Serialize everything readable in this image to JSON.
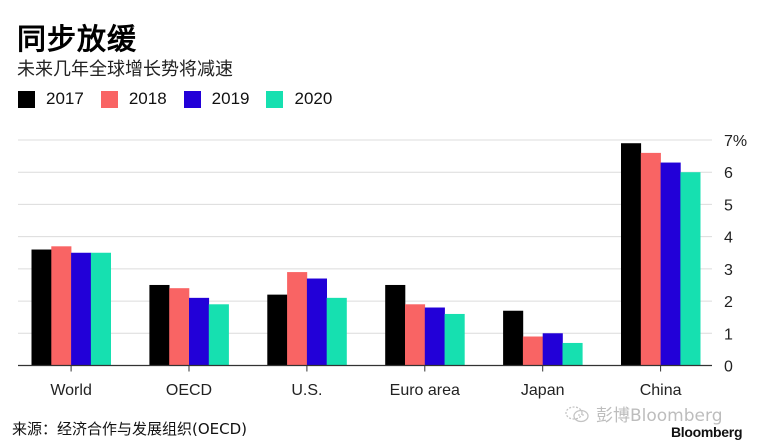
{
  "header": {
    "title": "同步放缓",
    "subtitle": "未来几年全球增长势将减速"
  },
  "footer": {
    "source": "来源：经济合作与发展组织(OECD)",
    "watermark": "彭博Bloomberg",
    "watermark_icon": "wechat-chat-icon",
    "brand": "Bloomberg"
  },
  "chart_data": {
    "type": "bar",
    "title": "同步放缓",
    "subtitle": "未来几年全球增长势将减速",
    "categories": [
      "World",
      "OECD",
      "U.S.",
      "Euro area",
      "Japan",
      "China"
    ],
    "series": [
      {
        "name": "2017",
        "color": "#000000",
        "values": [
          3.6,
          2.5,
          2.2,
          2.5,
          1.7,
          6.9
        ]
      },
      {
        "name": "2018",
        "color": "#f96464",
        "values": [
          3.7,
          2.4,
          2.9,
          1.9,
          0.9,
          6.6
        ]
      },
      {
        "name": "2019",
        "color": "#2200d8",
        "values": [
          3.5,
          2.1,
          2.7,
          1.8,
          1.0,
          6.3
        ]
      },
      {
        "name": "2020",
        "color": "#16e0b0",
        "values": [
          3.5,
          1.9,
          2.1,
          1.6,
          0.7,
          6.0
        ]
      }
    ],
    "xlabel": "",
    "ylabel": "",
    "ylim": [
      0,
      7
    ],
    "yticks": [
      0,
      1,
      2,
      3,
      4,
      5,
      6,
      7
    ],
    "ytick_labels": [
      "0",
      "1",
      "2",
      "3",
      "4",
      "5",
      "6",
      "7%"
    ],
    "y_axis_side": "right",
    "grid": true,
    "legend_position": "top-left",
    "source": "来源：经济合作与发展组织(OECD)"
  }
}
